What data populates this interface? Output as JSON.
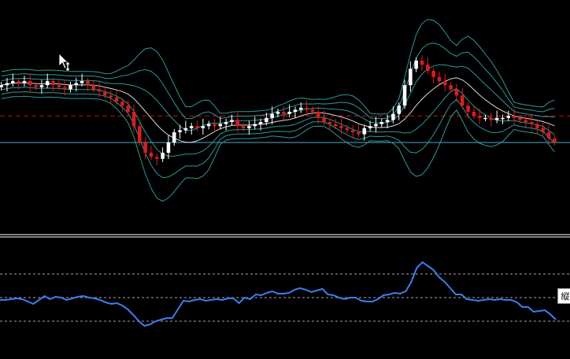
{
  "osc_tag": "縦",
  "colors": {
    "background": "#000000",
    "bull_candle": "#ffffff",
    "bear_candle": "#e01b1b",
    "bands": "#2a9a9a",
    "ma": "#ffffff",
    "osc_line": "#3a7ff0",
    "price_line": "#d01010",
    "level_line": "#5aa8c8",
    "separator": "#ffffff",
    "osc_level": "#cfcfcf"
  },
  "icons": {
    "cursor": "arrow-cursor-icon",
    "resize": "vertical-resize-icon"
  },
  "chart_data": [
    {
      "type": "candlestick",
      "title": "",
      "xlabel": "",
      "ylabel": "",
      "ylim": [
        0,
        100
      ],
      "grid": false,
      "indicators": [
        "moving-average",
        "envelope-bands-3"
      ],
      "reference_lines": [
        {
          "style": "dashed",
          "color": "red",
          "value": 53
        },
        {
          "style": "solid",
          "color": "blue",
          "value": 40
        }
      ],
      "closes": [
        68,
        69,
        70,
        69,
        70,
        68,
        67,
        68,
        70,
        68,
        67,
        66,
        68,
        69,
        70,
        68,
        66,
        65,
        63,
        62,
        60,
        58,
        55,
        48,
        40,
        35,
        33,
        32,
        35,
        40,
        45,
        46,
        47,
        48,
        47,
        48,
        49,
        48,
        49,
        50,
        51,
        48,
        47,
        48,
        49,
        50,
        52,
        54,
        55,
        54,
        55,
        56,
        57,
        56,
        55,
        52,
        50,
        49,
        48,
        47,
        46,
        45,
        44,
        47,
        48,
        49,
        50,
        51,
        54,
        58,
        68,
        76,
        80,
        78,
        75,
        72,
        70,
        68,
        66,
        63,
        58,
        55,
        53,
        52,
        52,
        51,
        52,
        52,
        53,
        52,
        51,
        50,
        49,
        47,
        45,
        42,
        40
      ]
    },
    {
      "type": "line",
      "title": "",
      "xlabel": "",
      "ylabel": "",
      "ylim": [
        0,
        100
      ],
      "grid": false,
      "levels": [
        80,
        50,
        20
      ],
      "values": [
        47,
        47,
        48,
        49,
        48,
        45,
        42,
        47,
        52,
        48,
        51,
        50,
        47,
        49,
        51,
        52,
        50,
        49,
        47,
        44,
        42,
        43,
        40,
        35,
        28,
        20,
        14,
        16,
        20,
        22,
        24,
        24,
        35,
        46,
        45,
        47,
        48,
        46,
        47,
        48,
        47,
        49,
        49,
        43,
        50,
        48,
        54,
        53,
        56,
        58,
        55,
        55,
        56,
        60,
        62,
        60,
        57,
        59,
        61,
        54,
        53,
        50,
        48,
        50,
        50,
        46,
        45,
        45,
        48,
        53,
        54,
        56,
        55,
        58,
        70,
        88,
        95,
        90,
        85,
        76,
        70,
        62,
        54,
        54,
        48,
        47,
        46,
        47,
        48,
        47,
        48,
        47,
        47,
        44,
        38,
        38,
        32,
        33,
        34,
        29,
        22
      ]
    }
  ]
}
